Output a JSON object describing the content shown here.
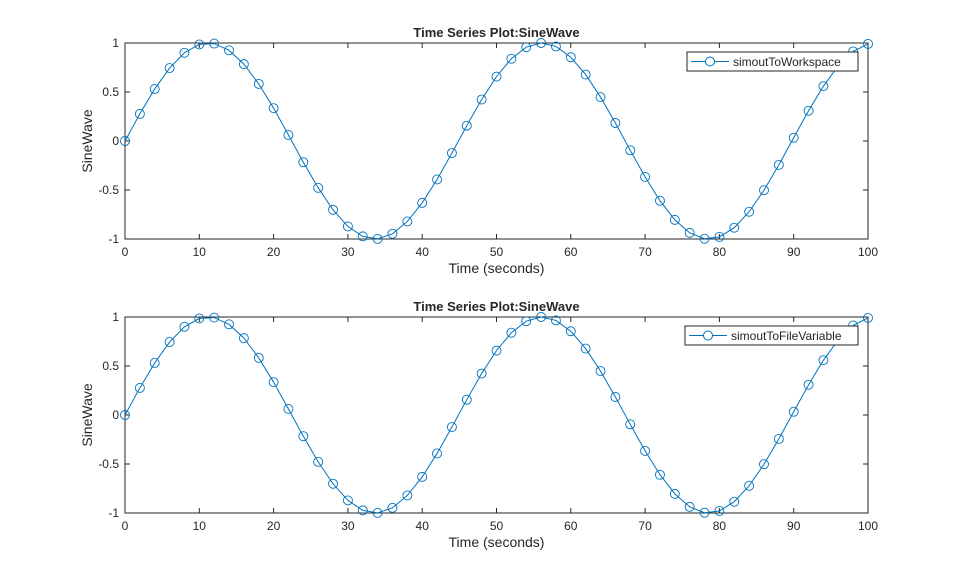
{
  "chart_data": [
    {
      "type": "line",
      "title": "Time Series Plot:SineWave",
      "xlabel": "Time (seconds)",
      "ylabel": "SineWave",
      "xlim": [
        0,
        100
      ],
      "ylim": [
        -1,
        1
      ],
      "xticks": [
        "0",
        "10",
        "20",
        "30",
        "40",
        "50",
        "60",
        "70",
        "80",
        "90",
        "100"
      ],
      "yticks": [
        "-1",
        "-0.5",
        "0",
        "0.5",
        "1"
      ],
      "grid": false,
      "legend_position": "top-right",
      "series": [
        {
          "name": "simoutToWorkspace",
          "color": "#0072BD",
          "marker": "circle",
          "function": "sin(0.14*t)",
          "t_step": 2
        }
      ]
    },
    {
      "type": "line",
      "title": "Time Series Plot:SineWave",
      "xlabel": "Time (seconds)",
      "ylabel": "SineWave",
      "xlim": [
        0,
        100
      ],
      "ylim": [
        -1,
        1
      ],
      "xticks": [
        "0",
        "10",
        "20",
        "30",
        "40",
        "50",
        "60",
        "70",
        "80",
        "90",
        "100"
      ],
      "yticks": [
        "-1",
        "-0.5",
        "0",
        "0.5",
        "1"
      ],
      "grid": false,
      "legend_position": "top-right",
      "series": [
        {
          "name": "simoutToFileVariable",
          "color": "#0072BD",
          "marker": "circle",
          "function": "sin(0.14*t)",
          "t_step": 2
        }
      ]
    }
  ]
}
